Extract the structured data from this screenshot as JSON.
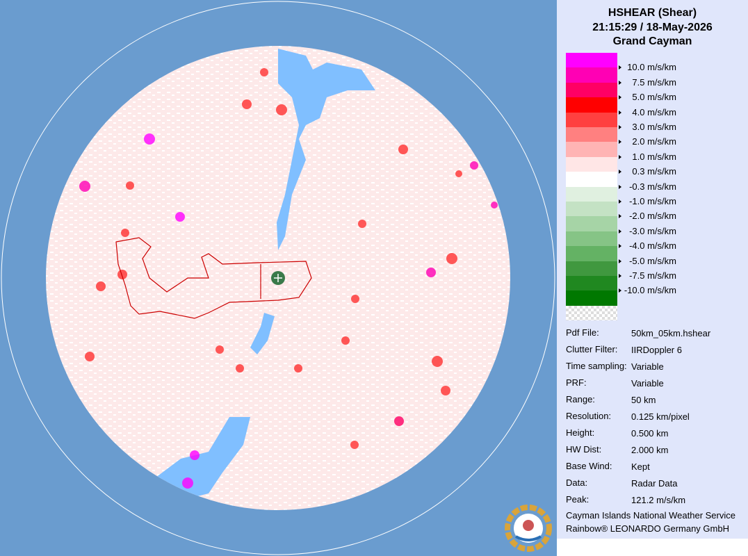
{
  "header": {
    "title": "HSHEAR (Shear)",
    "time": "21:15:29 / 18-May-2026",
    "site": "Grand Cayman"
  },
  "legend": {
    "colors": [
      "#ff00ff",
      "#ff00b4",
      "#ff0064",
      "#ff0000",
      "#ff4040",
      "#ff8080",
      "#ffb4b4",
      "#ffe6e6",
      "#ffffff",
      "#e0f0e0",
      "#c4e2c4",
      "#a6d4a6",
      "#86c486",
      "#64b264",
      "#40983f",
      "#208820",
      "#007800"
    ],
    "labels": [
      "10.0 m/s/km",
      "7.5 m/s/km",
      "5.0 m/s/km",
      "4.0 m/s/km",
      "3.0 m/s/km",
      "2.0 m/s/km",
      "1.0 m/s/km",
      "0.3 m/s/km",
      "-0.3 m/s/km",
      "-1.0 m/s/km",
      "-2.0 m/s/km",
      "-3.0 m/s/km",
      "-4.0 m/s/km",
      "-5.0 m/s/km",
      "-7.5 m/s/km",
      "-10.0 m/s/km"
    ]
  },
  "info": [
    {
      "label": "Pdf File:",
      "value": "50km_05km.hshear"
    },
    {
      "label": "Clutter Filter:",
      "value": "IIRDoppler 6"
    },
    {
      "label": "Time sampling:",
      "value": "Variable"
    },
    {
      "label": "PRF:",
      "value": "Variable"
    },
    {
      "label": "Range:",
      "value": "50 km"
    },
    {
      "label": "Resolution:",
      "value": "0.125 km/pixel"
    },
    {
      "label": "Height:",
      "value": "0.500 km"
    },
    {
      "label": "HW Dist:",
      "value": "2.000 km"
    },
    {
      "label": "Base Wind:",
      "value": "Kept"
    },
    {
      "label": "Data:",
      "value": "Radar Data"
    },
    {
      "label": "Peak:",
      "value": "121.2 m/s/km"
    }
  ],
  "footer": [
    "Cayman Islands National Weather Service",
    "Rainbow® LEONARDO Germany GmbH"
  ]
}
